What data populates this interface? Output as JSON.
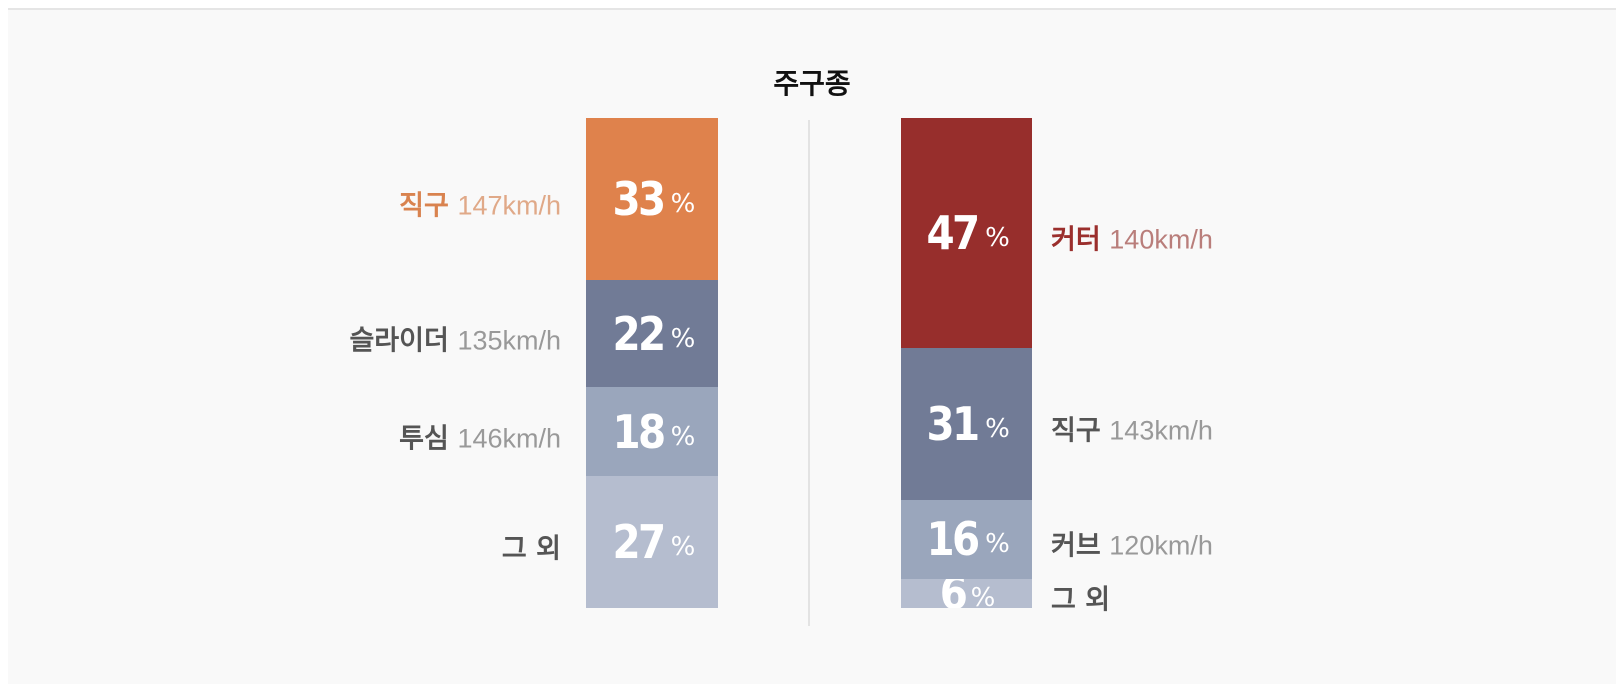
{
  "chart_data": {
    "type": "bar",
    "title": "주구종",
    "stacks": [
      {
        "side": "left",
        "segments": [
          {
            "name": "직구",
            "speed": "147km/h",
            "value": 33,
            "percent_label": "33",
            "color": "#df824c",
            "name_color": "#d9834f",
            "speed_color": "#e0a988"
          },
          {
            "name": "슬라이더",
            "speed": "135km/h",
            "value": 22,
            "percent_label": "22",
            "color": "#717b96",
            "name_color": "#555555",
            "speed_color": "#999999"
          },
          {
            "name": "투심",
            "speed": "146km/h",
            "value": 18,
            "percent_label": "18",
            "color": "#9aa6bc",
            "name_color": "#555555",
            "speed_color": "#999999"
          },
          {
            "name": "그 외",
            "speed": "",
            "value": 27,
            "percent_label": "27",
            "color": "#b5bdcf",
            "name_color": "#555555",
            "speed_color": "#999999"
          }
        ]
      },
      {
        "side": "right",
        "segments": [
          {
            "name": "커터",
            "speed": "140km/h",
            "value": 47,
            "percent_label": "47",
            "color": "#972e2c",
            "name_color": "#9b2f2d",
            "speed_color": "#b97e7b"
          },
          {
            "name": "직구",
            "speed": "143km/h",
            "value": 31,
            "percent_label": "31",
            "color": "#717b96",
            "name_color": "#555555",
            "speed_color": "#999999"
          },
          {
            "name": "커브",
            "speed": "120km/h",
            "value": 16,
            "percent_label": "16",
            "color": "#9aa6bc",
            "name_color": "#555555",
            "speed_color": "#999999"
          },
          {
            "name": "그 외",
            "speed": "",
            "value": 6,
            "percent_label": "6",
            "color": "#b5bdcf",
            "name_color": "#555555",
            "speed_color": "#999999"
          }
        ]
      }
    ],
    "percent_symbol": "%"
  }
}
